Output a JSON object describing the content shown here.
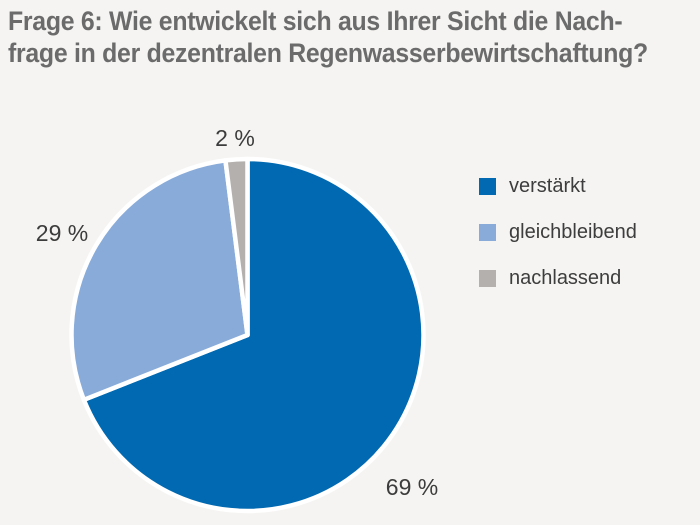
{
  "title": {
    "line1": "Frage 6: Wie entwickelt sich aus Ihrer Sicht die Nach-",
    "line2": "frage in der dezentralen Regenwasserbewirtschaftung?"
  },
  "colors": {
    "background": "#f5f4f2",
    "title_text": "#6b6b6b",
    "label_text": "#3c3c3c",
    "slice_separator": "#ffffff"
  },
  "chart_data": {
    "type": "pie",
    "title": "Frage 6: Wie entwickelt sich aus Ihrer Sicht die Nachfrage in der dezentralen Regenwasserbewirtschaftung?",
    "unit": "%",
    "slices": [
      {
        "label": "verstärkt",
        "value": 69,
        "display": "69 %",
        "color": "#0069b1"
      },
      {
        "label": "gleichbleibend",
        "value": 29,
        "display": "29 %",
        "color": "#88abd9"
      },
      {
        "label": "nachlassend",
        "value": 2,
        "display": "2 %",
        "color": "#b3b0ad"
      }
    ],
    "start_angle_deg": 0,
    "direction": "clockwise",
    "legend_position": "right",
    "grid": false
  }
}
